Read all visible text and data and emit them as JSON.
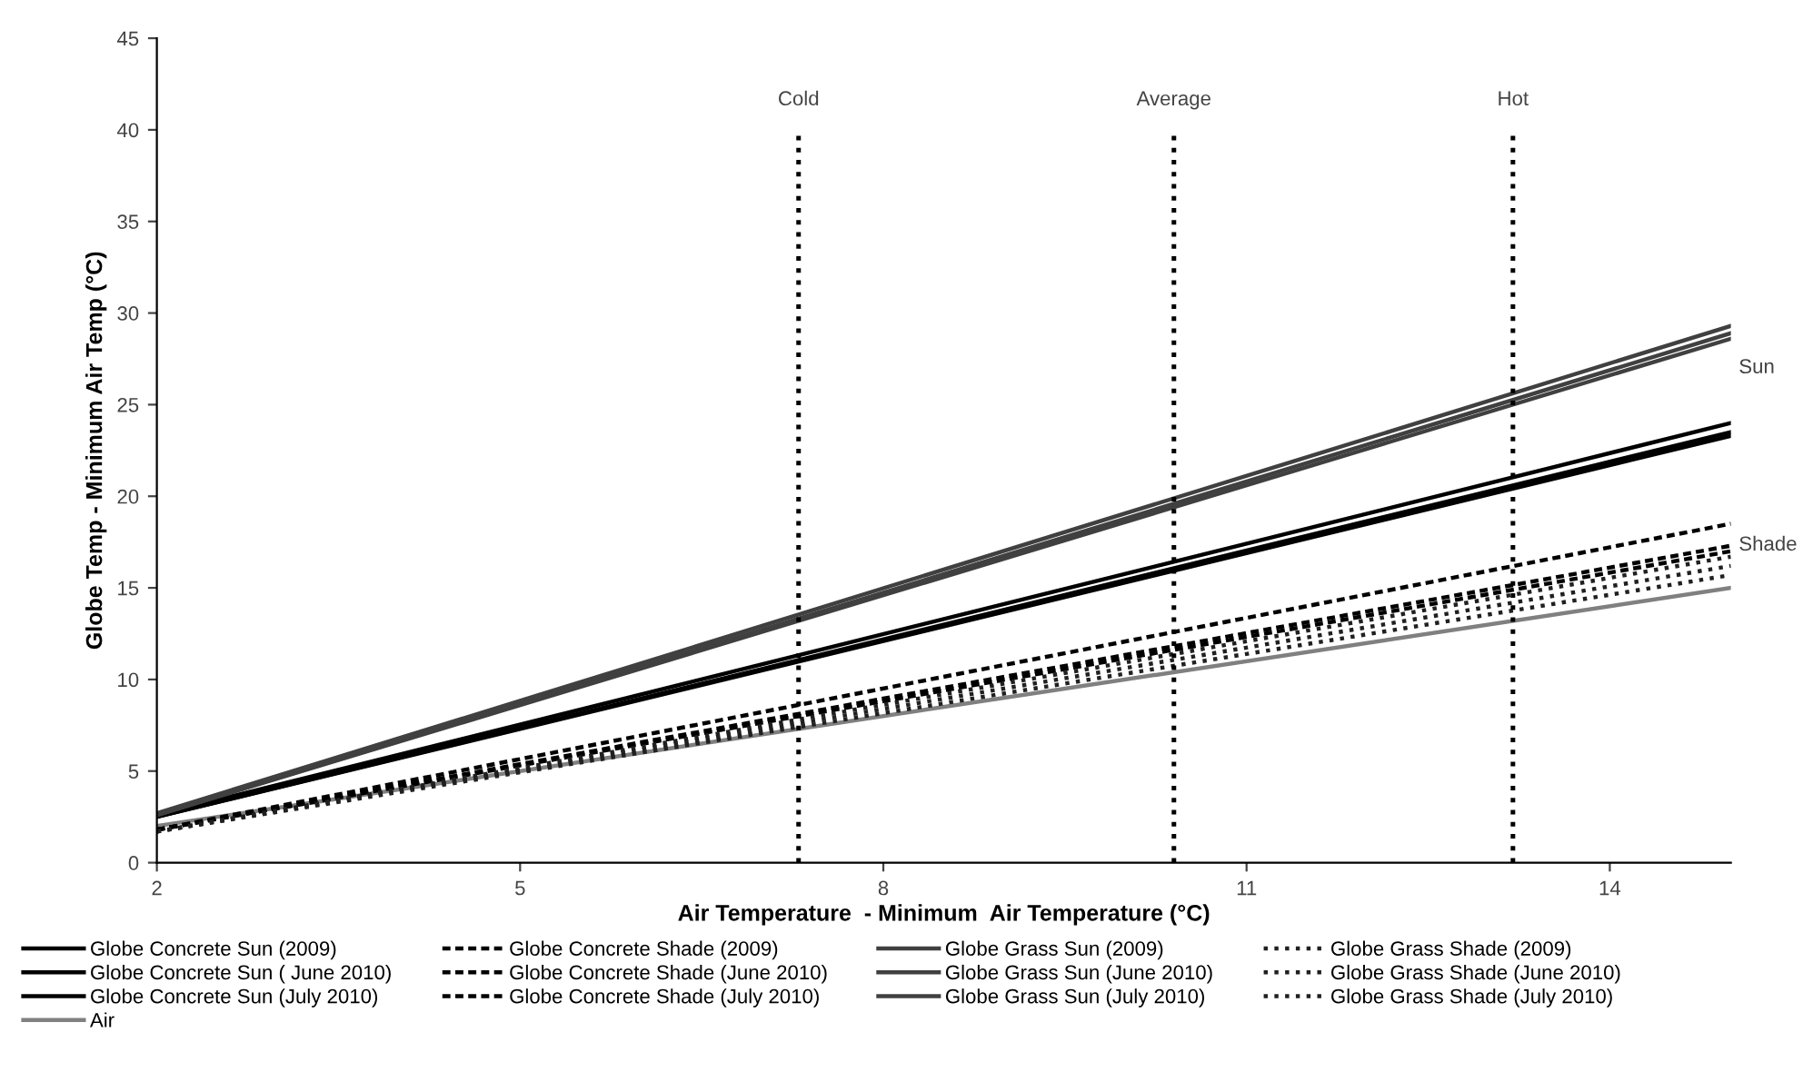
{
  "chart_data": {
    "type": "line",
    "xlabel": "Air Temperature  - Minimum  Air Temperature (°C)",
    "ylabel": "Globe Temp - Minimum Air Temp (°C)",
    "x": [
      2,
      15
    ],
    "xlim": [
      2,
      15
    ],
    "xticks": [
      2,
      5,
      8,
      11,
      14
    ],
    "ylim": [
      0,
      45
    ],
    "yticks": [
      0,
      5,
      10,
      15,
      20,
      25,
      30,
      35,
      40,
      45
    ],
    "grid": false,
    "legend": "bottom",
    "marker": "none",
    "series": [
      {
        "name": "Globe Concrete Sun (2009)",
        "color": "#000000",
        "line_style": "solid",
        "values": [
          2.5,
          23.3
        ]
      },
      {
        "name": "Globe Concrete Sun ( June 2010)",
        "color": "#000000",
        "line_style": "solid",
        "values": [
          2.5,
          23.5
        ]
      },
      {
        "name": "Globe Concrete Sun (July 2010)",
        "color": "#000000",
        "line_style": "solid",
        "values": [
          2.6,
          24.0
        ]
      },
      {
        "name": "Air",
        "color": "#808080",
        "line_style": "solid",
        "values": [
          2,
          15
        ]
      },
      {
        "name": "Globe Concrete Shade (2009)",
        "color": "#000000",
        "line_style": "dashed",
        "values": [
          1.8,
          18.5
        ]
      },
      {
        "name": "Globe Concrete Shade (June 2010)",
        "color": "#000000",
        "line_style": "dashed",
        "values": [
          1.8,
          17.3
        ]
      },
      {
        "name": "Globe Concrete Shade (July 2010)",
        "color": "#000000",
        "line_style": "dashed",
        "values": [
          1.8,
          17.0
        ]
      },
      {
        "name": "Globe Grass Sun (2009)",
        "color": "#404040",
        "line_style": "solid",
        "values": [
          2.6,
          28.6
        ]
      },
      {
        "name": "Globe Grass Sun (June 2010)",
        "color": "#404040",
        "line_style": "solid",
        "values": [
          2.6,
          28.9
        ]
      },
      {
        "name": "Globe Grass Sun (July 2010)",
        "color": "#404040",
        "line_style": "solid",
        "values": [
          2.7,
          29.3
        ]
      },
      {
        "name": "Globe Grass Shade (2009)",
        "color": "#202020",
        "line_style": "dotted",
        "values": [
          1.7,
          16.7
        ]
      },
      {
        "name": "Globe Grass Shade (June 2010)",
        "color": "#202020",
        "line_style": "dotted",
        "values": [
          1.7,
          16.2
        ]
      },
      {
        "name": "Globe Grass Shade (July 2010)",
        "color": "#202020",
        "line_style": "dotted",
        "values": [
          1.7,
          15.7
        ]
      }
    ],
    "ref_lines": [
      {
        "axis": "x",
        "value": 7.3,
        "label": "Cold",
        "line_style": "dotted",
        "color": "#000000"
      },
      {
        "axis": "x",
        "value": 10.4,
        "label": "Average",
        "line_style": "dotted",
        "color": "#000000"
      },
      {
        "axis": "x",
        "value": 13.2,
        "label": "Hot",
        "line_style": "dotted",
        "color": "#000000"
      }
    ],
    "annotations": [
      "Sun",
      "Shade"
    ]
  }
}
